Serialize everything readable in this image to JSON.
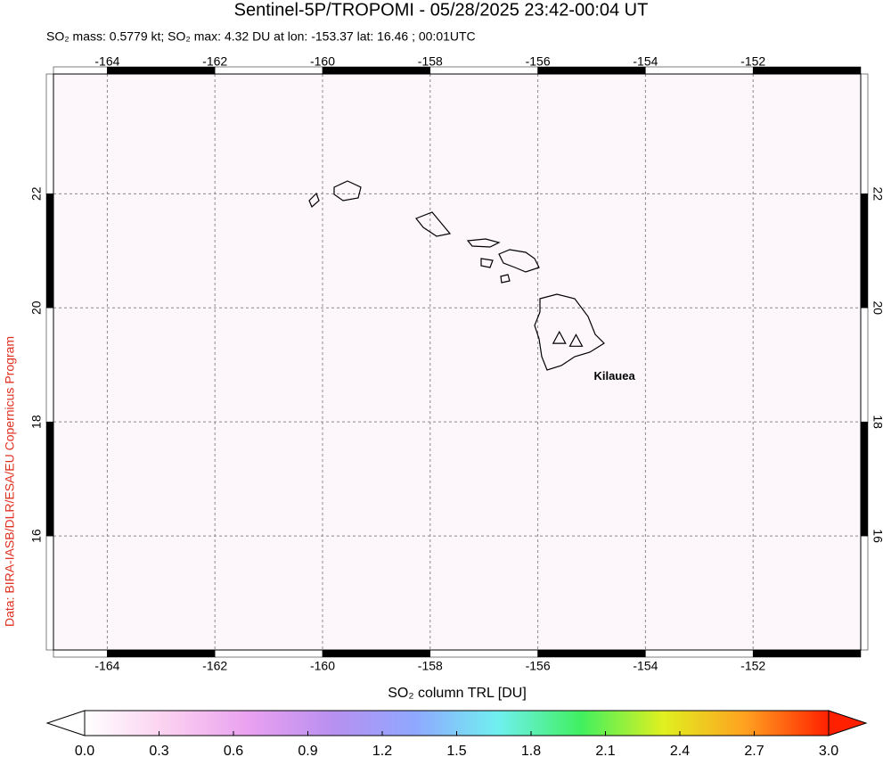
{
  "chart_data": {
    "type": "map",
    "title": "Sentinel-5P/TROPOMI - 05/28/2025 23:42-00:04 UT",
    "subtitle": "SO₂ mass: 0.5779 kt; SO₂ max: 4.32 DU at lon: -153.37 lat: 16.46 ; 00:01UTC",
    "credit": "Data: BIRA-IASB/DLR/ESA/EU Copernicus Program",
    "xlim": [
      -165,
      -150
    ],
    "xticks": [
      -164,
      -162,
      -160,
      -158,
      -156,
      -154,
      -152
    ],
    "ylim": [
      14,
      24.1
    ],
    "yticks": [
      16,
      18,
      20,
      22
    ],
    "grid": true,
    "volcanoes": [
      {
        "lon": -155.6,
        "lat": 19.47
      },
      {
        "lon": -155.29,
        "lat": 19.42,
        "label": "Kilauea"
      }
    ],
    "colorbar": {
      "label": "SO₂ column TRL [DU]",
      "lim": [
        0,
        3
      ],
      "ticks": [
        {
          "value": 0,
          "label": "0.0"
        },
        0.3,
        0.6,
        0.9,
        1.2,
        1.5,
        1.8,
        2.1,
        2.4,
        2.7,
        {
          "value": 3,
          "label": "3.0"
        }
      ],
      "colors": [
        "#ffffff",
        "#fbd0f0",
        "#e9a0f0",
        "#b890f0",
        "#8fa8ff",
        "#70f0f0",
        "#40f060",
        "#e0f020",
        "#ffa020",
        "#ff2000"
      ]
    }
  }
}
